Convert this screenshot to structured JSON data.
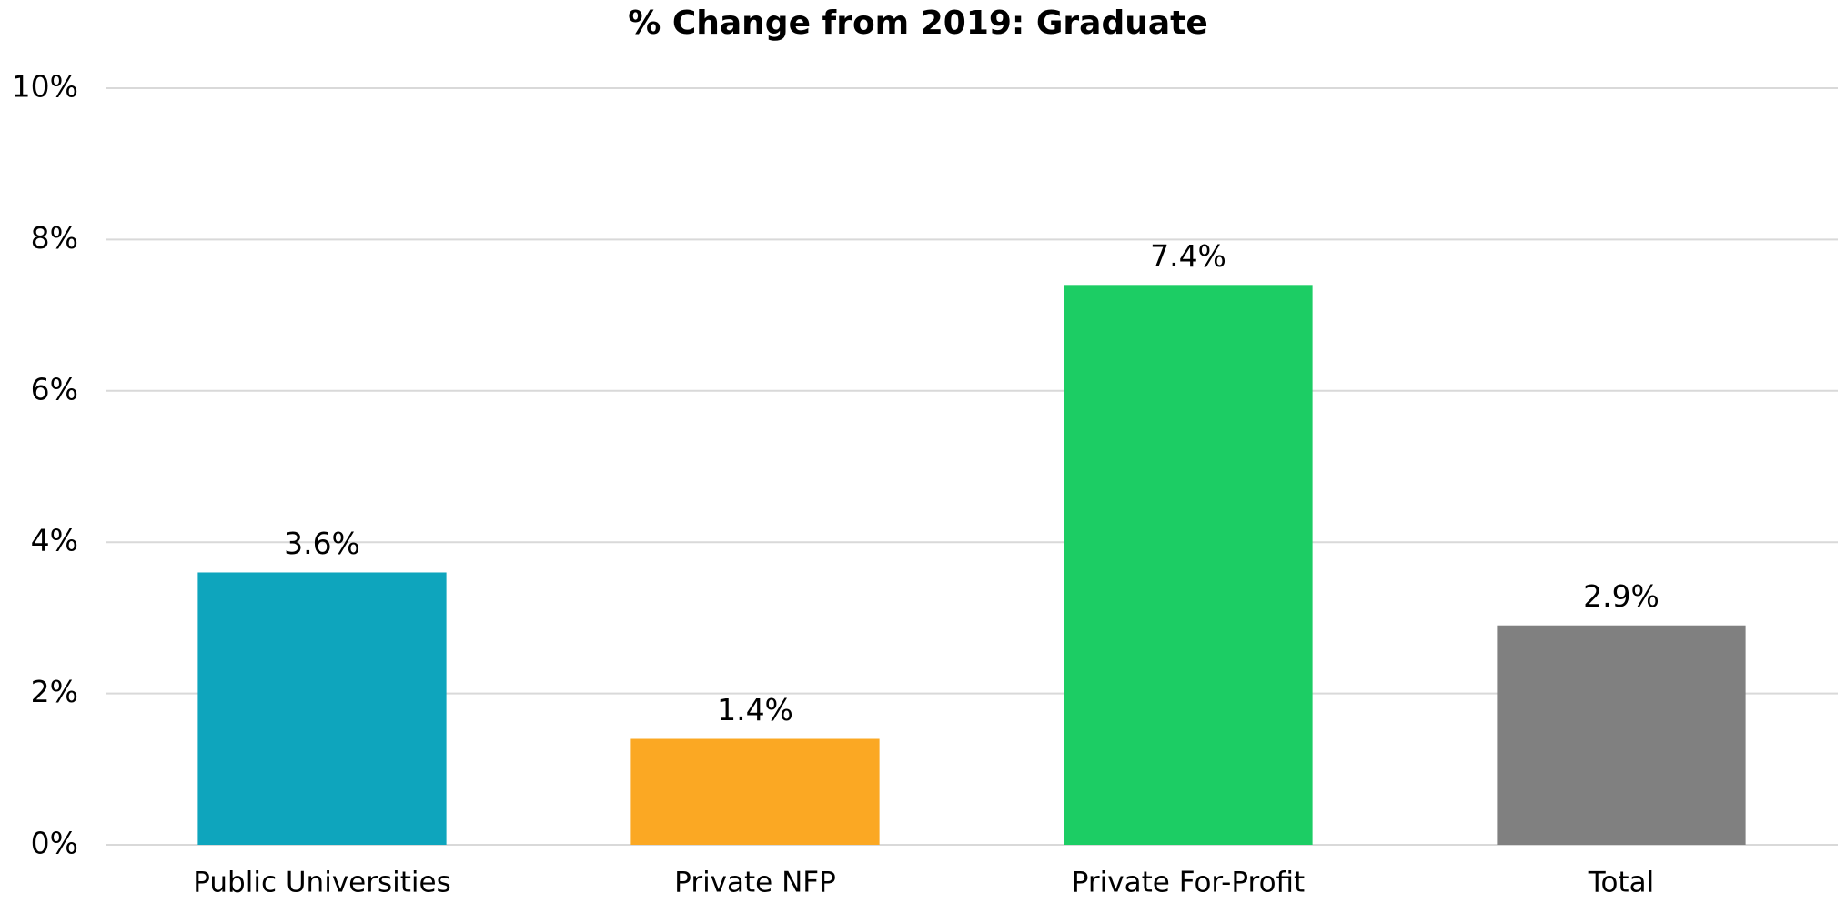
{
  "chart_data": {
    "type": "bar",
    "title": "% Change from 2019: Graduate",
    "categories": [
      "Public Universities",
      "Private NFP",
      "Private For-Profit",
      "Total"
    ],
    "values": [
      3.6,
      1.4,
      7.4,
      2.9
    ],
    "value_labels": [
      "3.6%",
      "1.4%",
      "7.4%",
      "2.9%"
    ],
    "colors": [
      "#0ea5bd",
      "#fba823",
      "#1ccd64",
      "#808080"
    ],
    "ylim": [
      0,
      10
    ],
    "yticks": [
      {
        "value": 0,
        "label": "0%"
      },
      {
        "value": 2,
        "label": "2%"
      },
      {
        "value": 4,
        "label": "4%"
      },
      {
        "value": 6,
        "label": "6%"
      },
      {
        "value": 8,
        "label": "8%"
      },
      {
        "value": 10,
        "label": "10%"
      }
    ],
    "grid": true
  }
}
